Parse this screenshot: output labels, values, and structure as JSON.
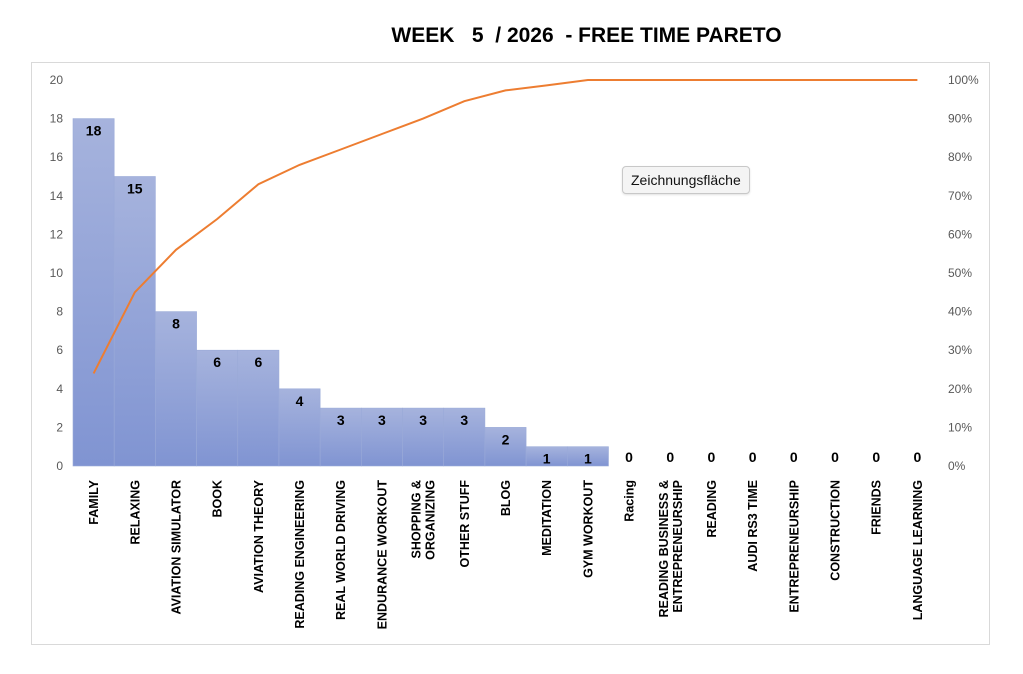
{
  "tooltip": "Zeichnungsfläche",
  "chart_data": {
    "type": "bar",
    "title": "WEEK   5  / 2026  - FREE TIME PARETO",
    "categories": [
      "FAMILY",
      "RELAXING",
      "AVIATION SIMULATOR",
      "BOOK",
      "AVIATION THEORY",
      "READING ENGINEERING",
      "REAL WORLD DRIVING",
      "ENDURANCE WORKOUT",
      "SHOPPING & ORGANIZING",
      "OTHER STUFF",
      "BLOG",
      "MEDITATION",
      "GYM WORKOUT",
      "Racing",
      "READING BUSINESS & ENTREPRENEURSHIP",
      "READING",
      "AUDI RS3 TIME",
      "ENTREPRENEURSHIP",
      "CONSTRUCTION",
      "FRIENDS",
      "LANGUAGE LEARNING"
    ],
    "category_lines": [
      [
        "FAMILY"
      ],
      [
        "RELAXING"
      ],
      [
        "AVIATION SIMULATOR"
      ],
      [
        "BOOK"
      ],
      [
        "AVIATION THEORY"
      ],
      [
        "READING ENGINEERING"
      ],
      [
        "REAL WORLD DRIVING"
      ],
      [
        "ENDURANCE WORKOUT"
      ],
      [
        "SHOPPING &",
        "ORGANIZING"
      ],
      [
        "OTHER STUFF"
      ],
      [
        "BLOG"
      ],
      [
        "MEDITATION"
      ],
      [
        "GYM WORKOUT"
      ],
      [
        "Racing"
      ],
      [
        "READING BUSINESS &",
        "ENTREPRENEURSHIP"
      ],
      [
        "READING"
      ],
      [
        "AUDI RS3 TIME"
      ],
      [
        "ENTREPRENEURSHIP"
      ],
      [
        "CONSTRUCTION"
      ],
      [
        "FRIENDS"
      ],
      [
        "LANGUAGE LEARNING"
      ]
    ],
    "series": [
      {
        "type": "bar",
        "values": [
          18,
          15,
          8,
          6,
          6,
          4,
          3,
          3,
          3,
          3,
          2,
          1,
          1,
          0,
          0,
          0,
          0,
          0,
          0,
          0,
          0
        ]
      },
      {
        "type": "line",
        "axis": "right",
        "values": [
          0.24,
          0.45,
          0.56,
          0.64,
          0.73,
          0.78,
          0.82,
          0.86,
          0.9,
          0.945,
          0.973,
          0.986,
          1.0,
          1.0,
          1.0,
          1.0,
          1.0,
          1.0,
          1.0,
          1.0,
          1.0
        ]
      }
    ],
    "ylim_left": [
      0,
      20
    ],
    "yticks_left": [
      "0",
      "2",
      "4",
      "6",
      "8",
      "10",
      "12",
      "14",
      "16",
      "18",
      "20"
    ],
    "ylim_right": [
      0,
      1
    ],
    "yticks_right": [
      "0%",
      "10%",
      "20%",
      "30%",
      "40%",
      "50%",
      "60%",
      "70%",
      "80%",
      "90%",
      "100%"
    ],
    "grid": false,
    "legend": "none",
    "colors": {
      "bar_top": "#a6b3dd",
      "bar_bottom": "#8094d2",
      "bar_border": "#9aaad8",
      "line": "#ed7d31",
      "axis_text": "#595959"
    }
  }
}
